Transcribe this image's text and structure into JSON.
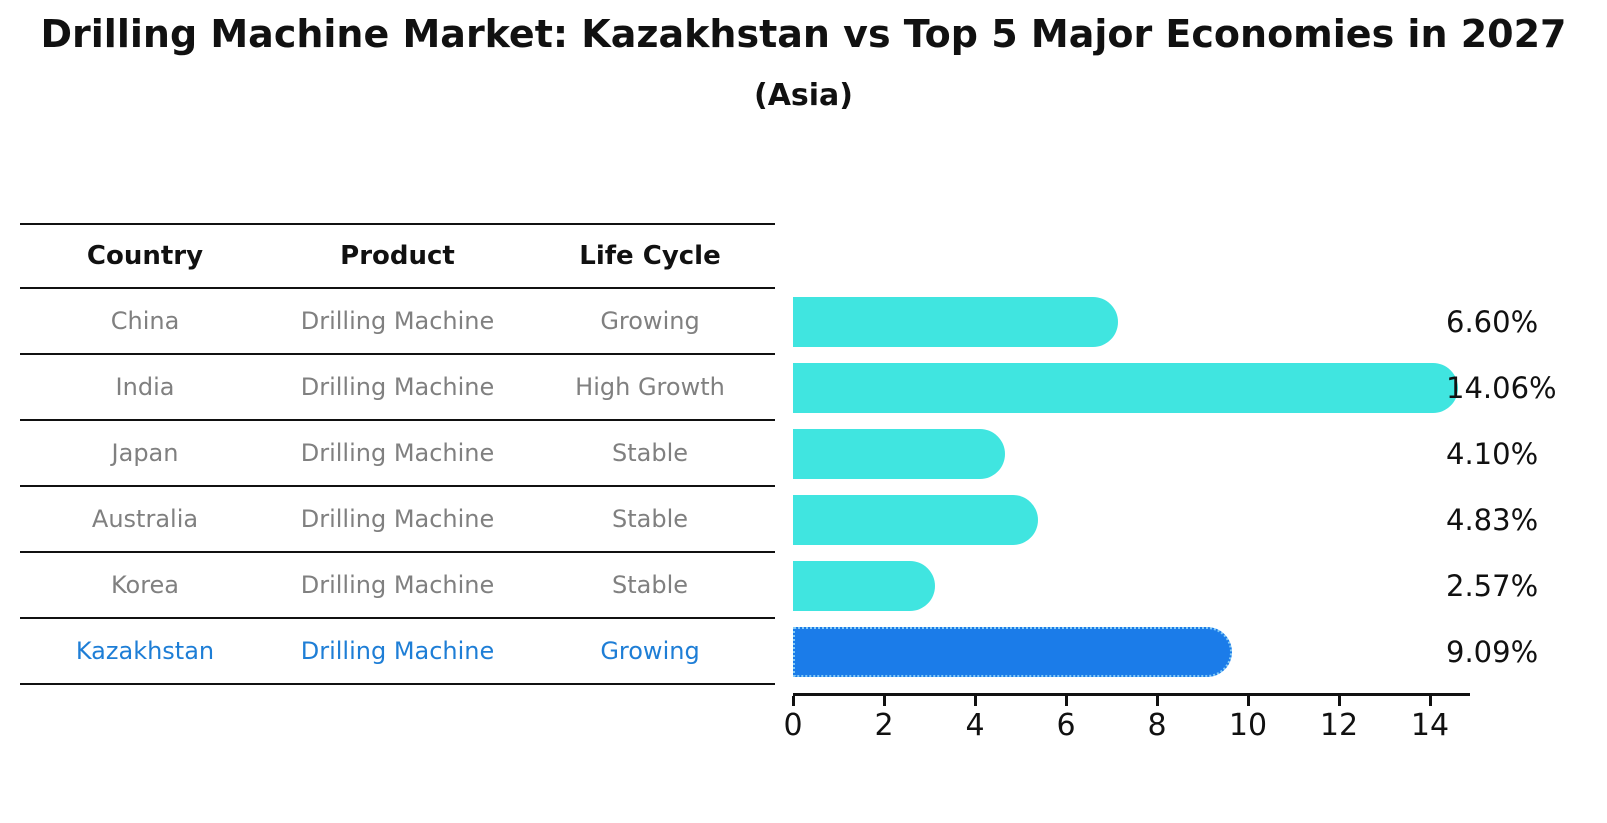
{
  "header": {
    "title": "Drilling Machine Market: Kazakhstan vs Top 5 Major Economies in 2027",
    "subtitle": "(Asia)"
  },
  "table": {
    "columns": [
      "Country",
      "Product",
      "Life Cycle"
    ],
    "rows": [
      {
        "country": "China",
        "product": "Drilling Machine",
        "life_cycle": "Growing",
        "highlight": false
      },
      {
        "country": "India",
        "product": "Drilling Machine",
        "life_cycle": "High Growth",
        "highlight": false
      },
      {
        "country": "Japan",
        "product": "Drilling Machine",
        "life_cycle": "Stable",
        "highlight": false
      },
      {
        "country": "Australia",
        "product": "Drilling Machine",
        "life_cycle": "Stable",
        "highlight": false
      },
      {
        "country": "Korea",
        "product": "Drilling Machine",
        "life_cycle": "Stable",
        "highlight": false
      },
      {
        "country": "Kazakhstan",
        "product": "Drilling Machine",
        "life_cycle": "Growing",
        "highlight": true
      }
    ]
  },
  "chart_data": {
    "type": "bar",
    "orientation": "horizontal",
    "title": "Drilling Machine Market: Kazakhstan vs Top 5 Major Economies in 2027 (Asia)",
    "categories": [
      "China",
      "India",
      "Japan",
      "Australia",
      "Korea",
      "Kazakhstan"
    ],
    "values": [
      6.6,
      14.06,
      4.1,
      4.83,
      2.57,
      9.09
    ],
    "value_labels": [
      "6.60%",
      "14.06%",
      "4.10%",
      "4.83%",
      "2.57%",
      "9.09%"
    ],
    "x_ticks": [
      "0",
      "2",
      "4",
      "6",
      "8",
      "10",
      "12",
      "14"
    ],
    "xlim": [
      0,
      15
    ],
    "grid": false,
    "legend": false,
    "bar_color": "#40E5E0",
    "highlight_bar_color": "#1B7CE9",
    "highlight_border_color": "#84CBF7",
    "highlight_index": 5
  },
  "colors": {
    "title_text": "#111111",
    "table_text": "#808080",
    "highlight_text": "#1E7ED6",
    "axis": "#111111",
    "background": "#FFFFFF"
  }
}
